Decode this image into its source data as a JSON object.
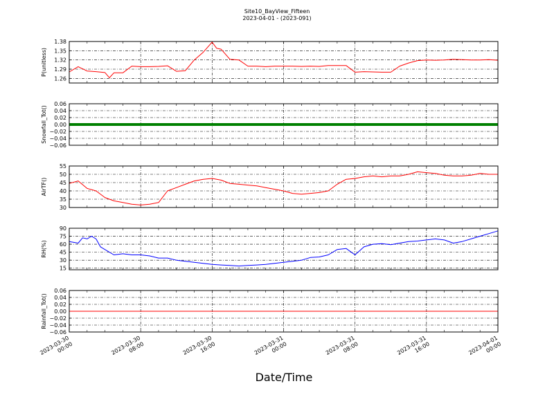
{
  "chart_data": {
    "type": "line",
    "title": "Site10_BayView_Fifteen",
    "subtitle": "2023-04-01 - (2023-091)",
    "xlabel": "Date/Time",
    "x_range": [
      "2023-03-30 00:00",
      "2023-04-01 00:00"
    ],
    "x_ticks": [
      [
        "2023-03-30",
        "00:00"
      ],
      [
        "2023-03-30",
        "08:00"
      ],
      [
        "2023-03-30",
        "16:00"
      ],
      [
        "2023-03-31",
        "00:00"
      ],
      [
        "2023-03-31",
        "08:00"
      ],
      [
        "2023-03-31",
        "16:00"
      ],
      [
        "2023-04-01",
        "00:00"
      ]
    ],
    "grid": true,
    "panels": [
      {
        "ylabel": "P(unitless)",
        "ylim": [
          1.245,
          1.38
        ],
        "yticks": [
          "1.38",
          "1.35",
          "1.32",
          "1.29",
          "1.26"
        ],
        "ytick_values": [
          1.38,
          1.35,
          1.32,
          1.29,
          1.26
        ],
        "color": "#ff0000",
        "linewidth": 1,
        "series_hours": [
          0,
          1,
          2,
          3,
          4,
          4.5,
          5,
          6,
          7,
          8,
          9,
          10,
          11,
          12,
          13,
          14,
          15,
          16,
          16.5,
          17,
          18,
          19,
          20,
          21,
          22,
          23,
          24,
          25,
          26,
          27,
          28,
          29,
          30,
          31,
          32,
          33,
          34,
          35,
          36,
          37,
          38,
          39,
          40,
          41,
          42,
          43,
          44,
          45,
          46,
          47,
          48
        ],
        "values": [
          1.281,
          1.298,
          1.284,
          1.282,
          1.279,
          1.262,
          1.278,
          1.278,
          1.3,
          1.298,
          1.298,
          1.299,
          1.301,
          1.283,
          1.285,
          1.32,
          1.345,
          1.378,
          1.358,
          1.355,
          1.322,
          1.32,
          1.3,
          1.3,
          1.298,
          1.3,
          1.3,
          1.3,
          1.299,
          1.3,
          1.299,
          1.302,
          1.302,
          1.302,
          1.28,
          1.282,
          1.281,
          1.28,
          1.28,
          1.3,
          1.31,
          1.318,
          1.32,
          1.319,
          1.32,
          1.322,
          1.321,
          1.32,
          1.32,
          1.321,
          1.319
        ]
      },
      {
        "ylabel": "Snowfall_Tot()",
        "ylim": [
          -0.06,
          0.06
        ],
        "yticks": [
          "0.06",
          "0.04",
          "0.02",
          "0.00",
          "−0.02",
          "−0.04",
          "−0.06"
        ],
        "ytick_values": [
          0.06,
          0.04,
          0.02,
          0.0,
          -0.02,
          -0.04,
          -0.06
        ],
        "color": "#008000",
        "linewidth": 4,
        "series_hours": [
          0,
          48
        ],
        "values": [
          0,
          0
        ]
      },
      {
        "ylabel": "AirTF()",
        "ylim": [
          30,
          55
        ],
        "yticks": [
          "55",
          "50",
          "45",
          "40",
          "35",
          "30"
        ],
        "ytick_values": [
          55,
          50,
          45,
          40,
          35,
          30
        ],
        "color": "#ff0000",
        "linewidth": 1,
        "series_hours": [
          0,
          1,
          2,
          3,
          4,
          5,
          6,
          7,
          8,
          9,
          10,
          11,
          12,
          13,
          14,
          15,
          16,
          17,
          18,
          19,
          20,
          21,
          22,
          23,
          24,
          25,
          26,
          27,
          28,
          29,
          30,
          31,
          32,
          33,
          34,
          35,
          36,
          37,
          38,
          39,
          40,
          41,
          42,
          43,
          44,
          45,
          46,
          47,
          48
        ],
        "values": [
          44.5,
          46,
          41.5,
          40,
          36,
          34,
          33,
          32,
          31.5,
          32,
          33,
          40,
          42,
          44,
          46,
          47,
          47.5,
          46.5,
          44.5,
          44,
          43.5,
          43,
          42,
          41,
          40,
          38.5,
          38,
          38.5,
          39,
          40,
          44,
          47,
          47.5,
          48.5,
          49,
          48.5,
          49,
          49,
          50,
          51.5,
          51,
          50.5,
          49.5,
          49,
          49,
          49.5,
          50.5,
          50,
          50
        ]
      },
      {
        "ylabel": "RH(%)",
        "ylim": [
          12,
          90
        ],
        "yticks": [
          "90",
          "75",
          "60",
          "45",
          "30",
          "15"
        ],
        "ytick_values": [
          90,
          75,
          60,
          45,
          30,
          15
        ],
        "color": "#0000ff",
        "linewidth": 1,
        "series_hours": [
          0,
          1,
          1.5,
          2,
          2.5,
          3,
          3.5,
          4,
          5,
          6,
          7,
          8,
          9,
          10,
          11,
          12,
          13,
          14,
          15,
          16,
          17,
          18,
          19,
          20,
          21,
          22,
          23,
          24,
          25,
          26,
          27,
          28,
          29,
          30,
          31,
          32,
          33,
          34,
          35,
          36,
          37,
          38,
          39,
          40,
          41,
          42,
          43,
          44,
          45,
          46,
          47,
          48
        ],
        "values": [
          65,
          62,
          72,
          70,
          75,
          70,
          55,
          50,
          40,
          42,
          40,
          40,
          38,
          34,
          34,
          30,
          28,
          26,
          24,
          22,
          21,
          20,
          19,
          20,
          21,
          22,
          24,
          26,
          28,
          30,
          35,
          36,
          40,
          50,
          52,
          40,
          55,
          60,
          61,
          59,
          62,
          65,
          66,
          68,
          70,
          68,
          62,
          65,
          70,
          75,
          80,
          85
        ]
      },
      {
        "ylabel": "Rainfall_Tot()",
        "ylim": [
          -0.06,
          0.06
        ],
        "yticks": [
          "0.06",
          "0.04",
          "0.02",
          "0.00",
          "−0.02",
          "−0.04",
          "−0.06"
        ],
        "ytick_values": [
          0.06,
          0.04,
          0.02,
          0.0,
          -0.02,
          -0.04,
          -0.06
        ],
        "color": "#ff0000",
        "linewidth": 1,
        "series_hours": [
          0,
          48
        ],
        "values": [
          0,
          0
        ]
      }
    ]
  }
}
